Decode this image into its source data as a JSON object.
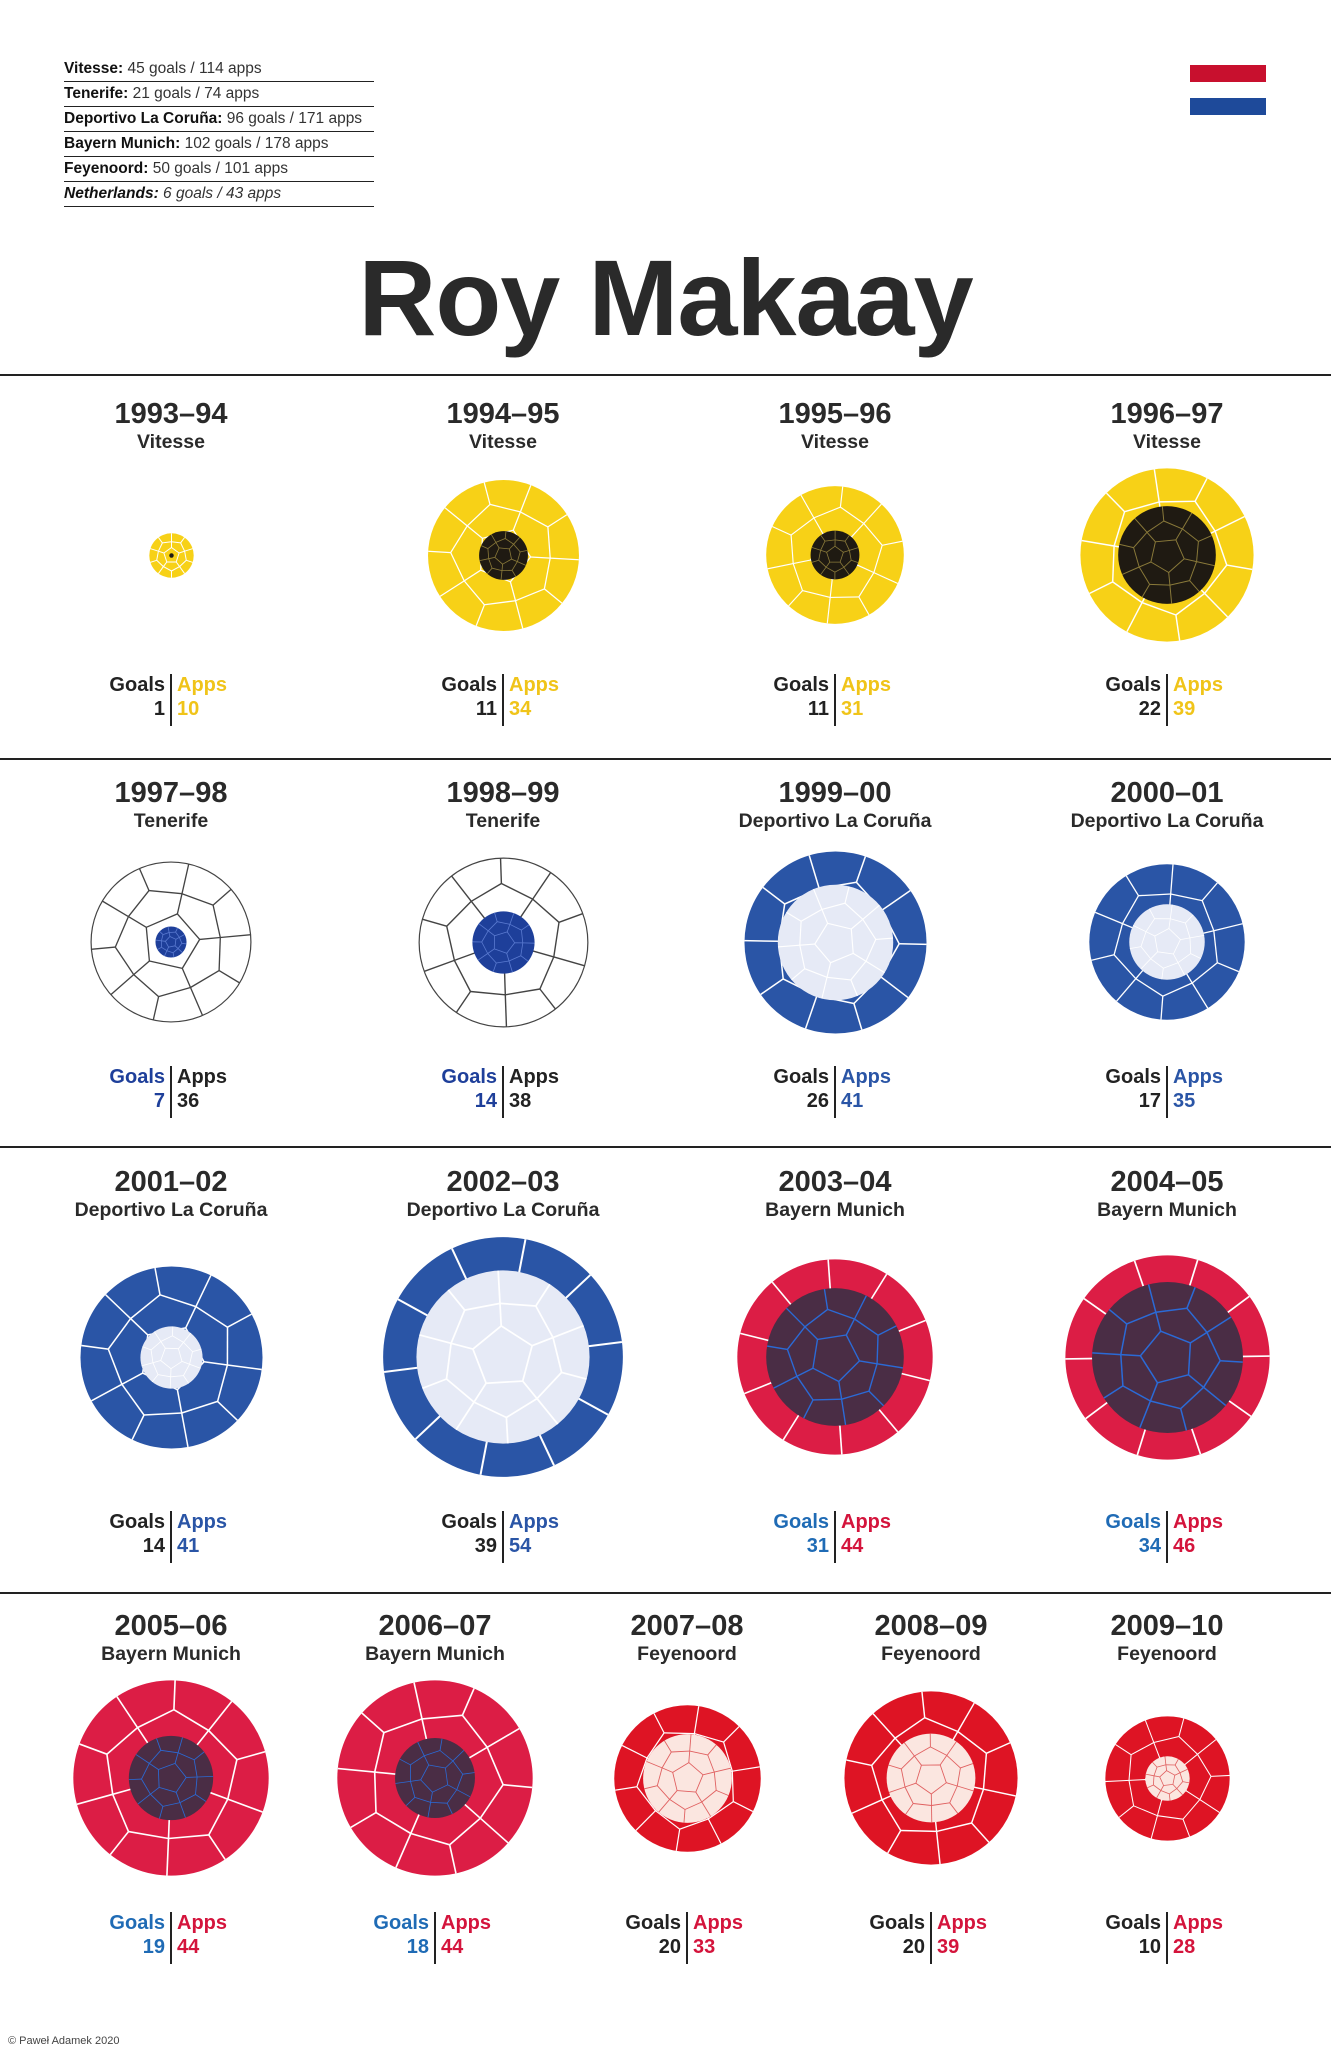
{
  "summary": [
    {
      "club": "Vitesse:",
      "stats": " 45 goals / 114 apps",
      "italic": false
    },
    {
      "club": "Tenerife:",
      "stats": " 21 goals / 74 apps",
      "italic": false
    },
    {
      "club": "Deportivo La Coruña:",
      "stats": " 96 goals / 171 apps",
      "italic": false
    },
    {
      "club": "Bayern Munich:",
      "stats": " 102 goals / 178 apps",
      "italic": false
    },
    {
      "club": "Feyenoord:",
      "stats": " 50 goals / 101 apps",
      "italic": false
    },
    {
      "club": "Netherlands:",
      "stats": " 6 goals / 43 apps",
      "italic": true
    }
  ],
  "flag_colors": [
    "#c8102e",
    "#ffffff",
    "#1e4a9a"
  ],
  "title": "Roy Makaay",
  "labels": {
    "goals": "Goals",
    "apps": "Apps"
  },
  "credit": "© Paweł Adamek 2020",
  "club_colors": {
    "Vitesse": {
      "outer": "#f7d117",
      "inner": "#1f1a12",
      "outer_line": "#ffffff",
      "inner_line": "#8a7a3a",
      "goals_label": "#222222",
      "apps_label": "#f0c419"
    },
    "Tenerife": {
      "outer": "#ffffff",
      "inner": "#1e3f9a",
      "outer_line": "#444444",
      "inner_line": "#5a7ad0",
      "goals_label": "#1e3f9a",
      "apps_label": "#222222"
    },
    "Deportivo La Coruña": {
      "outer": "#2a55a6",
      "inner": "#e6eaf6",
      "outer_line": "#ffffff",
      "inner_line": "#ffffff",
      "goals_label": "#222222",
      "apps_label": "#2a55a6"
    },
    "Bayern Munich": {
      "outer": "#dc1d45",
      "inner": "#4a2d45",
      "outer_line": "#ffffff",
      "inner_line": "#2b6ad6",
      "goals_label": "#1f6bb5",
      "apps_label": "#d4143c"
    },
    "Feyenoord": {
      "outer": "#de1424",
      "inner": "#fbe6e0",
      "outer_line": "#ffffff",
      "inner_line": "#e06060",
      "goals_label": "#222222",
      "apps_label": "#d4143c"
    }
  },
  "seasons": [
    {
      "season": "1993–94",
      "club": "Vitesse",
      "goals": 1,
      "apps": 10
    },
    {
      "season": "1994–95",
      "club": "Vitesse",
      "goals": 11,
      "apps": 34
    },
    {
      "season": "1995–96",
      "club": "Vitesse",
      "goals": 11,
      "apps": 31
    },
    {
      "season": "1996–97",
      "club": "Vitesse",
      "goals": 22,
      "apps": 39
    },
    {
      "season": "1997–98",
      "club": "Tenerife",
      "goals": 7,
      "apps": 36
    },
    {
      "season": "1998–99",
      "club": "Tenerife",
      "goals": 14,
      "apps": 38
    },
    {
      "season": "1999–00",
      "club": "Deportivo La Coruña",
      "goals": 26,
      "apps": 41
    },
    {
      "season": "2000–01",
      "club": "Deportivo La Coruña",
      "goals": 17,
      "apps": 35
    },
    {
      "season": "2001–02",
      "club": "Deportivo La Coruña",
      "goals": 14,
      "apps": 41
    },
    {
      "season": "2002–03",
      "club": "Deportivo La Coruña",
      "goals": 39,
      "apps": 54
    },
    {
      "season": "2003–04",
      "club": "Bayern Munich",
      "goals": 31,
      "apps": 44
    },
    {
      "season": "2004–05",
      "club": "Bayern Munich",
      "goals": 34,
      "apps": 46
    },
    {
      "season": "2005–06",
      "club": "Bayern Munich",
      "goals": 19,
      "apps": 44
    },
    {
      "season": "2006–07",
      "club": "Bayern Munich",
      "goals": 18,
      "apps": 44
    },
    {
      "season": "2007–08",
      "club": "Feyenoord",
      "goals": 20,
      "apps": 33
    },
    {
      "season": "2008–09",
      "club": "Feyenoord",
      "goals": 20,
      "apps": 39
    },
    {
      "season": "2009–10",
      "club": "Feyenoord",
      "goals": 10,
      "apps": 28
    }
  ]
}
